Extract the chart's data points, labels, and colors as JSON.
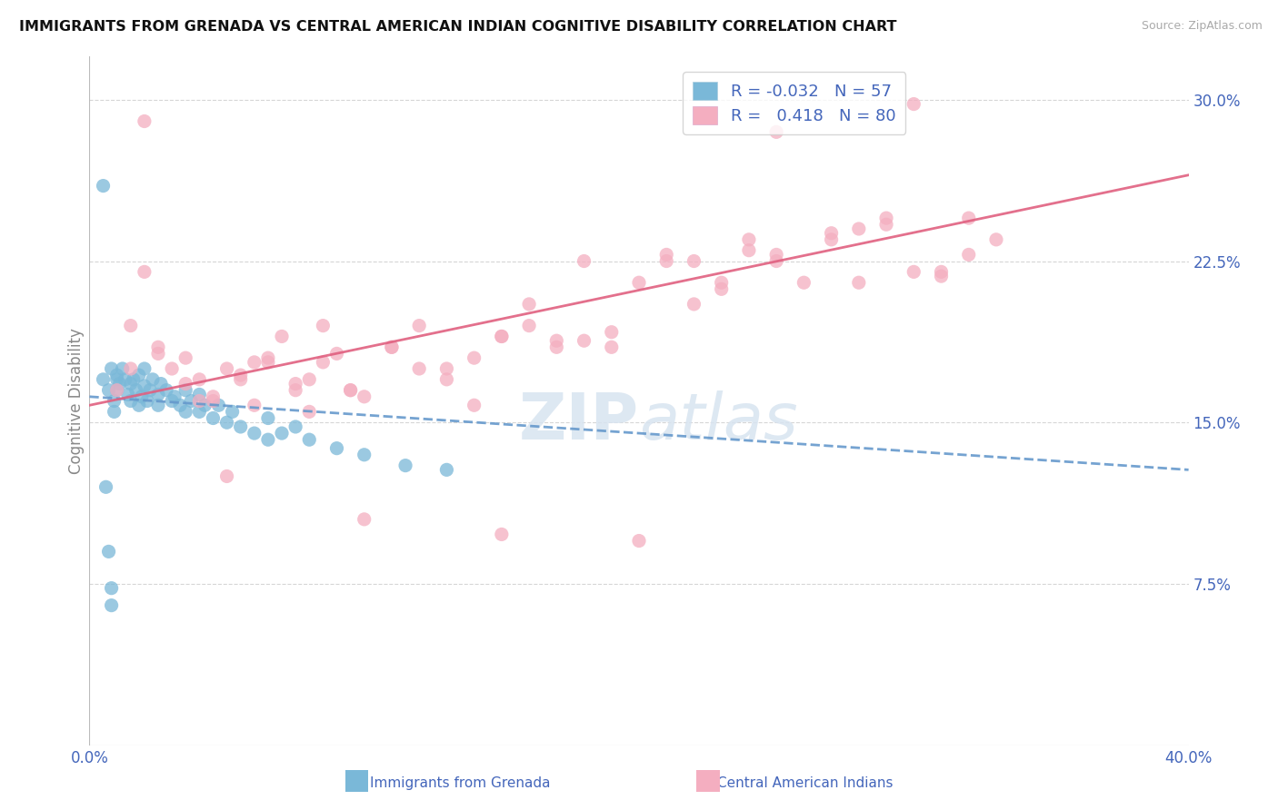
{
  "title": "IMMIGRANTS FROM GRENADA VS CENTRAL AMERICAN INDIAN COGNITIVE DISABILITY CORRELATION CHART",
  "source": "Source: ZipAtlas.com",
  "legend_label1": "Immigrants from Grenada",
  "legend_label2": "Central American Indians",
  "ylabel": "Cognitive Disability",
  "xlim": [
    0.0,
    0.4
  ],
  "ylim": [
    0.0,
    0.32
  ],
  "xtick_vals": [
    0.0,
    0.4
  ],
  "xtick_labels": [
    "0.0%",
    "40.0%"
  ],
  "yticks": [
    0.075,
    0.15,
    0.225,
    0.3
  ],
  "ytick_labels": [
    "7.5%",
    "15.0%",
    "22.5%",
    "30.0%"
  ],
  "legend_R1": "-0.032",
  "legend_N1": "57",
  "legend_R2": "0.418",
  "legend_N2": "80",
  "blue_color": "#7ab8d8",
  "pink_color": "#f4aec0",
  "blue_line_color": "#6699cc",
  "pink_line_color": "#e06080",
  "text_color": "#4466bb",
  "axis_color": "#888888",
  "grid_color": "#cccccc",
  "blue_trend_x0": 0.0,
  "blue_trend_y0": 0.162,
  "blue_trend_x1": 0.4,
  "blue_trend_y1": 0.128,
  "pink_trend_x0": 0.0,
  "pink_trend_y0": 0.158,
  "pink_trend_x1": 0.4,
  "pink_trend_y1": 0.265,
  "blue_points_x": [
    0.005,
    0.007,
    0.008,
    0.009,
    0.01,
    0.01,
    0.01,
    0.011,
    0.012,
    0.013,
    0.014,
    0.015,
    0.015,
    0.016,
    0.017,
    0.018,
    0.018,
    0.019,
    0.02,
    0.02,
    0.021,
    0.022,
    0.023,
    0.025,
    0.025,
    0.026,
    0.028,
    0.03,
    0.031,
    0.033,
    0.035,
    0.035,
    0.037,
    0.04,
    0.04,
    0.042,
    0.045,
    0.047,
    0.05,
    0.052,
    0.055,
    0.06,
    0.065,
    0.065,
    0.07,
    0.075,
    0.08,
    0.09,
    0.1,
    0.115,
    0.13,
    0.005,
    0.006,
    0.007,
    0.008,
    0.008,
    0.009
  ],
  "blue_points_y": [
    0.17,
    0.165,
    0.175,
    0.16,
    0.165,
    0.17,
    0.172,
    0.168,
    0.175,
    0.17,
    0.163,
    0.168,
    0.16,
    0.17,
    0.165,
    0.172,
    0.158,
    0.162,
    0.167,
    0.175,
    0.16,
    0.165,
    0.17,
    0.158,
    0.163,
    0.168,
    0.165,
    0.16,
    0.162,
    0.158,
    0.155,
    0.165,
    0.16,
    0.155,
    0.163,
    0.158,
    0.152,
    0.158,
    0.15,
    0.155,
    0.148,
    0.145,
    0.142,
    0.152,
    0.145,
    0.148,
    0.142,
    0.138,
    0.135,
    0.13,
    0.128,
    0.26,
    0.12,
    0.09,
    0.073,
    0.065,
    0.155
  ],
  "pink_points_x": [
    0.01,
    0.015,
    0.02,
    0.025,
    0.03,
    0.035,
    0.04,
    0.045,
    0.05,
    0.055,
    0.06,
    0.065,
    0.07,
    0.075,
    0.08,
    0.085,
    0.09,
    0.095,
    0.1,
    0.11,
    0.12,
    0.13,
    0.14,
    0.15,
    0.16,
    0.17,
    0.18,
    0.19,
    0.2,
    0.21,
    0.22,
    0.23,
    0.24,
    0.25,
    0.26,
    0.27,
    0.28,
    0.29,
    0.3,
    0.31,
    0.32,
    0.33,
    0.015,
    0.025,
    0.035,
    0.045,
    0.055,
    0.065,
    0.075,
    0.085,
    0.095,
    0.11,
    0.13,
    0.15,
    0.17,
    0.19,
    0.21,
    0.23,
    0.25,
    0.27,
    0.29,
    0.31,
    0.05,
    0.1,
    0.15,
    0.2,
    0.25,
    0.3,
    0.02,
    0.04,
    0.06,
    0.08,
    0.12,
    0.14,
    0.16,
    0.18,
    0.22,
    0.24,
    0.28,
    0.32
  ],
  "pink_points_y": [
    0.165,
    0.195,
    0.22,
    0.185,
    0.175,
    0.18,
    0.17,
    0.16,
    0.175,
    0.17,
    0.178,
    0.18,
    0.19,
    0.165,
    0.17,
    0.178,
    0.182,
    0.165,
    0.162,
    0.185,
    0.195,
    0.175,
    0.18,
    0.19,
    0.205,
    0.185,
    0.225,
    0.185,
    0.215,
    0.225,
    0.205,
    0.215,
    0.23,
    0.225,
    0.215,
    0.235,
    0.24,
    0.245,
    0.22,
    0.22,
    0.245,
    0.235,
    0.175,
    0.182,
    0.168,
    0.162,
    0.172,
    0.178,
    0.168,
    0.195,
    0.165,
    0.185,
    0.17,
    0.19,
    0.188,
    0.192,
    0.228,
    0.212,
    0.228,
    0.238,
    0.242,
    0.218,
    0.125,
    0.105,
    0.098,
    0.095,
    0.285,
    0.298,
    0.29,
    0.16,
    0.158,
    0.155,
    0.175,
    0.158,
    0.195,
    0.188,
    0.225,
    0.235,
    0.215,
    0.228
  ]
}
